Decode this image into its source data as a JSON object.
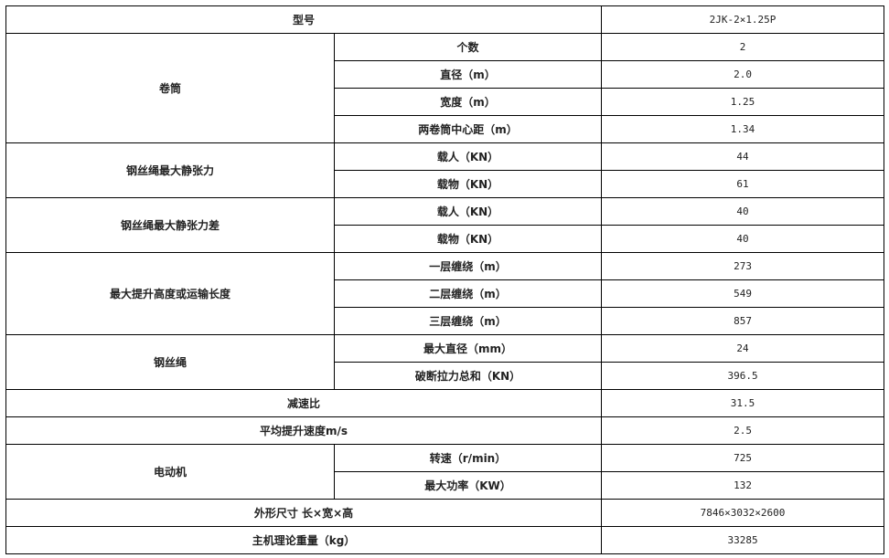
{
  "table": {
    "rows": [
      {
        "label": "型号",
        "value": "2JK-2×1.25P"
      },
      {
        "label": "卷筒",
        "items": [
          {
            "name": "个数",
            "value": "2"
          },
          {
            "name": "直径（m）",
            "value": "2.0"
          },
          {
            "name": "宽度（m）",
            "value": "1.25"
          },
          {
            "name": "两卷筒中心距（m）",
            "value": "1.34"
          }
        ]
      },
      {
        "label": "钢丝绳最大静张力",
        "items": [
          {
            "name": "载人（KN）",
            "value": "44"
          },
          {
            "name": "载物（KN）",
            "value": "61"
          }
        ]
      },
      {
        "label": "钢丝绳最大静张力差",
        "items": [
          {
            "name": "载人（KN）",
            "value": "40"
          },
          {
            "name": "载物（KN）",
            "value": "40"
          }
        ]
      },
      {
        "label": "最大提升高度或运输长度",
        "items": [
          {
            "name": "一层缠绕（m）",
            "value": "273"
          },
          {
            "name": "二层缠绕（m）",
            "value": "549"
          },
          {
            "name": "三层缠绕（m）",
            "value": "857"
          }
        ]
      },
      {
        "label": "钢丝绳",
        "items": [
          {
            "name": "最大直径（mm）",
            "value": "24"
          },
          {
            "name": "破断拉力总和（KN）",
            "value": "396.5"
          }
        ]
      },
      {
        "label": "减速比",
        "value": "31.5"
      },
      {
        "label": "平均提升速度m/s",
        "value": "2.5"
      },
      {
        "label": "电动机",
        "items": [
          {
            "name": "转速（r/min）",
            "value": "725"
          },
          {
            "name": "最大功率（KW）",
            "value": "132"
          }
        ]
      },
      {
        "label": "外形尺寸 长×宽×高",
        "value": "7846×3032×2600"
      },
      {
        "label": "主机理论重量（kg）",
        "value": "33285"
      }
    ]
  }
}
